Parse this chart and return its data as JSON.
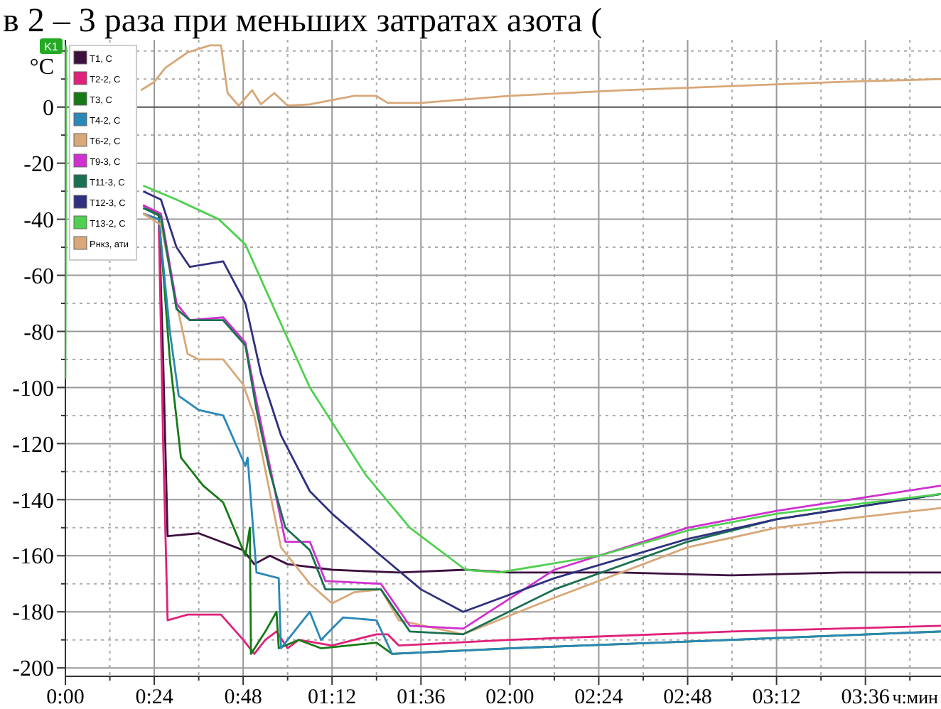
{
  "chart_data": {
    "type": "line",
    "ylabel": "°C",
    "xlabel": "ч:мин",
    "annotations": [
      "в 2 – 3 раза при меньших затратах азота (",
      "K1"
    ],
    "xlim": [
      0,
      3.94
    ],
    "ylim": [
      -203,
      24
    ],
    "xticks": [
      {
        "value": 0,
        "label": "0:00"
      },
      {
        "value": 0.2,
        "label": null
      },
      {
        "value": 0.4,
        "label": "0:24"
      },
      {
        "value": 0.6,
        "label": null
      },
      {
        "value": 0.8,
        "label": "0:48"
      },
      {
        "value": 1.0,
        "label": null
      },
      {
        "value": 1.2,
        "label": "01:12"
      },
      {
        "value": 1.4,
        "label": null
      },
      {
        "value": 1.6,
        "label": "01:36"
      },
      {
        "value": 1.8,
        "label": null
      },
      {
        "value": 2.0,
        "label": "02:00"
      },
      {
        "value": 2.2,
        "label": null
      },
      {
        "value": 2.4,
        "label": "02:24"
      },
      {
        "value": 2.6,
        "label": null
      },
      {
        "value": 2.8,
        "label": "02:48"
      },
      {
        "value": 3.0,
        "label": null
      },
      {
        "value": 3.2,
        "label": "03:12"
      },
      {
        "value": 3.4,
        "label": null
      },
      {
        "value": 3.6,
        "label": "03:36"
      },
      {
        "value": 3.8,
        "label": null
      }
    ],
    "yticks": [
      -200,
      {
        "value": -190,
        "label": null
      },
      -180,
      {
        "value": -170,
        "label": null
      },
      -160,
      {
        "value": -150,
        "label": null
      },
      -140,
      {
        "value": -130,
        "label": null
      },
      -120,
      {
        "value": -110,
        "label": null
      },
      -100,
      {
        "value": -90,
        "label": null
      },
      -80,
      {
        "value": -70,
        "label": null
      },
      -60,
      {
        "value": -50,
        "label": null
      },
      -40,
      {
        "value": -30,
        "label": null
      },
      -20,
      {
        "value": -10,
        "label": null
      },
      0,
      {
        "value": 10,
        "label": null
      },
      {
        "value": 20,
        "label": null
      }
    ],
    "grid": true,
    "legend": "top left",
    "marker": "none",
    "line_style": "solid",
    "series": [
      {
        "name": "T1, C",
        "color": "#3d1040",
        "x": [
          0.35,
          0.42,
          0.44,
          0.46,
          0.6,
          0.7,
          0.8,
          0.85,
          0.92,
          1.0,
          1.2,
          1.5,
          1.8,
          2.0,
          2.5,
          3.0,
          3.5,
          3.94
        ],
        "values": [
          -35,
          -38,
          -90,
          -153,
          -152,
          -155,
          -158,
          -163,
          -160,
          -163,
          -165,
          -166,
          -165,
          -166,
          -166,
          -167,
          -166,
          -166
        ]
      },
      {
        "name": "T2-2, C",
        "color": "#e0207a",
        "x": [
          0.35,
          0.42,
          0.44,
          0.46,
          0.55,
          0.7,
          0.8,
          0.85,
          0.9,
          0.95,
          1.0,
          1.05,
          1.2,
          1.4,
          1.45,
          1.5,
          2.0,
          3.0,
          3.94
        ],
        "values": [
          -38,
          -40,
          -120,
          -183,
          -181,
          -181,
          -190,
          -195,
          -190,
          -187,
          -193,
          -190,
          -192,
          -188,
          -188,
          -192,
          -190,
          -187,
          -185
        ]
      },
      {
        "name": "T3, C",
        "color": "#167a16",
        "x": [
          0.35,
          0.42,
          0.47,
          0.52,
          0.62,
          0.71,
          0.81,
          0.83,
          0.835,
          0.9,
          0.95,
          0.96,
          1.05,
          1.15,
          1.4,
          1.47,
          2.0,
          3.0,
          3.94
        ],
        "values": [
          -36,
          -38,
          -90,
          -125,
          -135,
          -141,
          -160,
          -150,
          -195,
          -187,
          -180,
          -193,
          -190,
          -193,
          -191,
          -195,
          -193,
          -190,
          -187
        ]
      },
      {
        "name": "T4-2, C",
        "color": "#2a88b8",
        "x": [
          0.35,
          0.42,
          0.47,
          0.51,
          0.6,
          0.71,
          0.81,
          0.82,
          0.86,
          0.96,
          0.97,
          1.05,
          1.1,
          1.15,
          1.25,
          1.4,
          1.47,
          2.0,
          3.0,
          3.94
        ],
        "values": [
          -38,
          -40,
          -80,
          -103,
          -108,
          -110,
          -128,
          -125,
          -166,
          -168,
          -193,
          -185,
          -180,
          -190,
          -182,
          -183,
          -195,
          -193,
          -190,
          -187
        ]
      },
      {
        "name": "T6-2, C",
        "color": "#d8a878",
        "x": [
          0.35,
          0.43,
          0.5,
          0.55,
          0.6,
          0.71,
          0.8,
          0.85,
          0.97,
          1.1,
          1.2,
          1.3,
          1.42,
          1.5,
          1.79,
          2.2,
          2.8,
          3.2,
          3.6,
          3.94
        ],
        "values": [
          -38,
          -42,
          -70,
          -88,
          -90,
          -90,
          -99,
          -110,
          -157,
          -170,
          -177,
          -173,
          -172,
          -183,
          -188,
          -175,
          -157,
          -150,
          -146,
          -143
        ]
      },
      {
        "name": "T9-3, C",
        "color": "#d030d0",
        "x": [
          0.35,
          0.43,
          0.5,
          0.56,
          0.71,
          0.81,
          0.86,
          0.92,
          0.99,
          1.1,
          1.17,
          1.42,
          1.55,
          1.79,
          2.2,
          2.8,
          3.2,
          3.94
        ],
        "values": [
          -35,
          -38,
          -70,
          -76,
          -75,
          -84,
          -105,
          -128,
          -155,
          -155,
          -169,
          -170,
          -185,
          -186,
          -165,
          -150,
          -144,
          -135
        ]
      },
      {
        "name": "T11-3, C",
        "color": "#1a7050",
        "x": [
          0.35,
          0.43,
          0.5,
          0.56,
          0.71,
          0.81,
          0.86,
          0.92,
          0.99,
          1.1,
          1.17,
          1.42,
          1.55,
          1.79,
          2.2,
          2.8,
          3.2,
          3.94
        ],
        "values": [
          -36,
          -39,
          -72,
          -76,
          -76,
          -85,
          -108,
          -130,
          -150,
          -158,
          -172,
          -172,
          -187,
          -188,
          -172,
          -155,
          -147,
          -138
        ]
      },
      {
        "name": "T12-3, C",
        "color": "#303080",
        "x": [
          0.35,
          0.43,
          0.5,
          0.56,
          0.71,
          0.81,
          0.88,
          0.97,
          1.1,
          1.2,
          1.42,
          1.6,
          1.79,
          2.2,
          2.8,
          3.2,
          3.94
        ],
        "values": [
          -30,
          -33,
          -50,
          -57,
          -55,
          -70,
          -95,
          -117,
          -137,
          -145,
          -160,
          -172,
          -180,
          -168,
          -154,
          -147,
          -138
        ]
      },
      {
        "name": "T13-2, C",
        "color": "#50d050",
        "x": [
          0,
          0.003,
          0.2,
          0.35,
          0.5,
          0.69,
          0.81,
          0.94,
          1.1,
          1.35,
          1.55,
          1.8,
          1.95,
          2.4,
          2.8,
          3.2,
          3.94
        ],
        "values": [
          -97,
          22,
          null,
          -28,
          -33,
          -40,
          -49,
          -72,
          -100,
          -131,
          -150,
          -165,
          -166,
          -160,
          -151,
          -145,
          -138
        ]
      },
      {
        "name": "Рнкз, ати",
        "color": "#d8a878",
        "x": [
          0.34,
          0.4,
          0.45,
          0.55,
          0.65,
          0.7,
          0.73,
          0.78,
          0.84,
          0.88,
          0.94,
          1.0,
          1.1,
          1.3,
          1.4,
          1.45,
          1.6,
          2.0,
          2.5,
          3.0,
          3.5,
          3.94
        ],
        "values": [
          6,
          9,
          14,
          19.5,
          22,
          22,
          5,
          0.5,
          6,
          1,
          5,
          0.5,
          1,
          4,
          4,
          1.5,
          1.5,
          4,
          6,
          7.5,
          9,
          10
        ]
      }
    ]
  }
}
